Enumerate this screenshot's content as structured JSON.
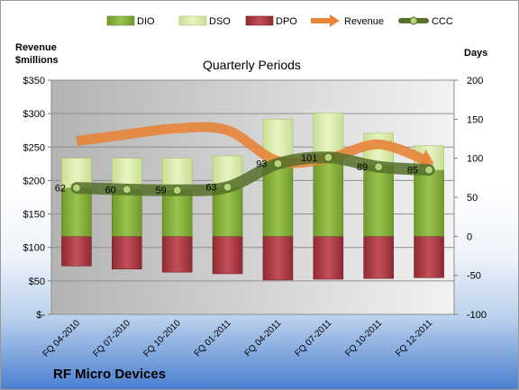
{
  "chart_data": {
    "type": "bar",
    "title": "Quarterly Periods",
    "company": "RF Micro Devices",
    "left_axis_label": "Revenue\n$millions",
    "right_axis_label": "Days",
    "left_ticks": [
      "$350",
      "$300",
      "$250",
      "$200",
      "$150",
      "$100",
      "$50",
      "$-"
    ],
    "right_ticks": [
      "200",
      "150",
      "100",
      "50",
      "0",
      "-50",
      "-100"
    ],
    "left_ylim": [
      0,
      350
    ],
    "right_ylim": [
      -100,
      200
    ],
    "categories": [
      "FQ 04-2010",
      "FQ 07-2010",
      "FQ 10-2010",
      "FQ 01-2011",
      "FQ 04-2011",
      "FQ 07-2011",
      "FQ 10-2011",
      "FQ 12-2011"
    ],
    "legend": [
      "DIO",
      "DSO",
      "DPO",
      "Revenue",
      "CCC"
    ],
    "legend_position": "top",
    "series": [
      {
        "name": "DIO",
        "axis": "right",
        "color": "#8cb33e",
        "values": [
          62,
          60,
          59,
          63,
          95,
          101,
          90,
          85
        ]
      },
      {
        "name": "DSO",
        "axis": "right",
        "color": "#d6eaa8",
        "values": [
          38,
          40,
          41,
          40,
          55,
          57,
          42,
          31
        ]
      },
      {
        "name": "DPO",
        "axis": "right",
        "color": "#b9404a",
        "values": [
          -38,
          -42,
          -46,
          -48,
          -56,
          -55,
          -54,
          -53
        ]
      },
      {
        "name": "Revenue",
        "axis": "left",
        "color": "#e8843a",
        "values": [
          259,
          269,
          278,
          275,
          229,
          233,
          254,
          228
        ]
      },
      {
        "name": "CCC",
        "axis": "right",
        "color": "#55702a",
        "values": [
          62,
          60,
          59,
          63,
          93,
          101,
          89,
          85
        ]
      }
    ],
    "data_labels": [
      "62",
      "60",
      "59",
      "63",
      "93",
      "101",
      "89",
      "85"
    ],
    "grid": true
  }
}
